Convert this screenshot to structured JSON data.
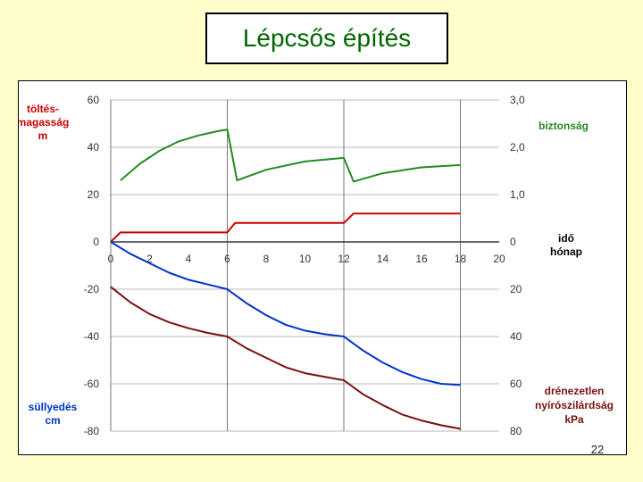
{
  "page": {
    "title": "Lépcsős építés",
    "page_number": "22"
  },
  "chart_data": {
    "type": "line",
    "title": "Lépcsős építés",
    "xlim": [
      0,
      20
    ],
    "x_ticks": [
      "0",
      "2",
      "4",
      "6",
      "8",
      "10",
      "12",
      "14",
      "16",
      "18",
      "20"
    ],
    "x_unit_label": [
      "idő",
      "hónap"
    ],
    "left_axis": {
      "upper_label": [
        "töltés-",
        "magasság",
        "m"
      ],
      "lower_label": [
        "süllyedés",
        "cm"
      ],
      "range": [
        -80,
        60
      ],
      "ticks": [
        "60",
        "40",
        "20",
        "0",
        "-20",
        "-40",
        "-60",
        "-80"
      ]
    },
    "right_axis": {
      "upper_label": "biztonság",
      "upper_ticks": [
        "3,0",
        "2,0",
        "1,0",
        "0"
      ],
      "lower_label": [
        "drénezetlen",
        "nyírószilárdság",
        "kPa"
      ],
      "lower_ticks": [
        "20",
        "40",
        "60",
        "80"
      ]
    },
    "grid": {
      "vertical_at": [
        0,
        6,
        12,
        18
      ],
      "horizontal": true
    },
    "colors": {
      "red": "#cc0000",
      "green": "#228b22",
      "blue": "#0033cc",
      "brown": "#7a1010"
    },
    "series": [
      {
        "color": "red",
        "axis": "left",
        "x": [
          0,
          0.5,
          6,
          6.4,
          12,
          12.5,
          18
        ],
        "y": [
          0,
          4,
          4,
          8,
          8,
          12,
          12
        ]
      },
      {
        "color": "green",
        "axis": "left",
        "x": [
          0.5,
          1.5,
          2.5,
          3.5,
          4.5,
          5.5,
          6,
          6.5,
          8,
          10,
          12,
          12.5,
          14,
          16,
          18
        ],
        "y": [
          26,
          33,
          38.5,
          42.5,
          45,
          46.8,
          47.5,
          26,
          30.5,
          34,
          35.5,
          25.5,
          29,
          31.5,
          32.5
        ]
      },
      {
        "color": "blue",
        "axis": "left",
        "x": [
          0,
          1,
          2,
          3,
          4,
          5,
          6,
          7,
          8,
          9,
          10,
          11,
          12,
          13,
          14,
          15,
          16,
          17,
          18
        ],
        "y": [
          0,
          -5,
          -9,
          -13,
          -16,
          -18,
          -20,
          -26,
          -31,
          -35,
          -37.5,
          -39,
          -40,
          -46,
          -51,
          -55,
          -58,
          -60,
          -60.5
        ]
      },
      {
        "color": "brown",
        "axis": "left",
        "x": [
          0,
          1,
          2,
          3,
          4,
          5,
          6,
          7,
          8,
          9,
          10,
          11,
          12,
          13,
          14,
          15,
          16,
          17,
          18
        ],
        "y": [
          -19,
          -25.5,
          -30.5,
          -34,
          -36.5,
          -38.5,
          -40,
          -45,
          -49,
          -53,
          -55.5,
          -57,
          -58.5,
          -64.5,
          -69,
          -73,
          -75.5,
          -77.5,
          -79
        ]
      }
    ]
  }
}
